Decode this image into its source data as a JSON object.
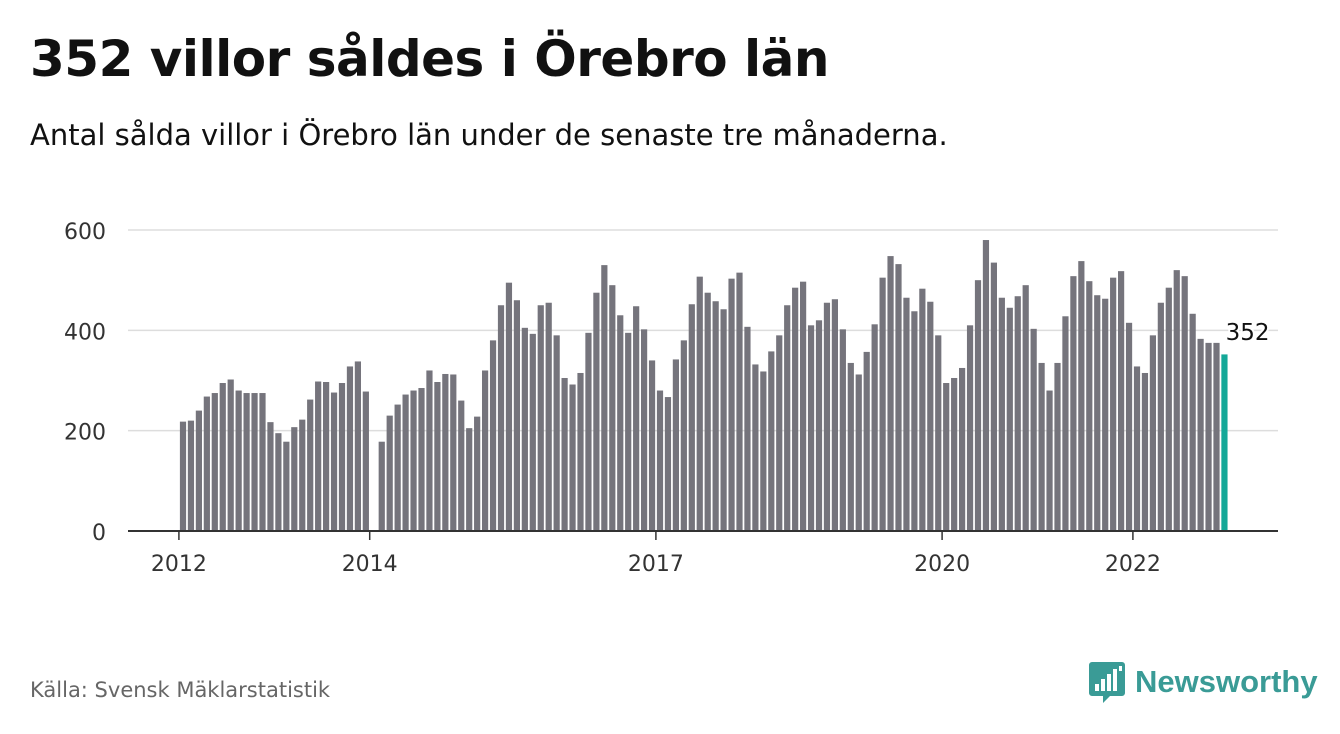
{
  "title": "352 villor såldes i Örebro län",
  "subtitle": "Antal sålda villor i Örebro län under de senaste tre månaderna.",
  "source": "Källa: Svensk Mäklarstatistik",
  "brand": {
    "name": "Newsworthy",
    "icon": "newsworthy-logo-icon",
    "color": "#3a9b96"
  },
  "colors": {
    "bar": "#75747c",
    "highlight": "#14a898",
    "grid": "#dddddd",
    "axis": "#333333"
  },
  "chart_data": {
    "type": "bar",
    "title": "352 villor såldes i Örebro län",
    "xlabel": "",
    "ylabel": "",
    "ylim": [
      0,
      600
    ],
    "yticks": [
      0,
      200,
      400,
      600
    ],
    "xticks": [
      {
        "label": "2012",
        "index": 0
      },
      {
        "label": "2014",
        "index": 24
      },
      {
        "label": "2017",
        "index": 60
      },
      {
        "label": "2020",
        "index": 96
      },
      {
        "label": "2022",
        "index": 120
      }
    ],
    "grid": true,
    "annotation": {
      "index": 131,
      "label": "352"
    },
    "highlight_index": 131,
    "values": [
      218,
      220,
      240,
      268,
      275,
      295,
      302,
      280,
      275,
      275,
      275,
      217,
      195,
      178,
      207,
      222,
      262,
      298,
      297,
      276,
      295,
      328,
      338,
      278,
      null,
      178,
      230,
      252,
      272,
      280,
      285,
      320,
      297,
      313,
      312,
      260,
      205,
      228,
      320,
      380,
      450,
      495,
      460,
      405,
      393,
      450,
      455,
      390,
      305,
      292,
      315,
      395,
      475,
      530,
      490,
      430,
      395,
      448,
      402,
      340,
      280,
      267,
      342,
      380,
      452,
      507,
      475,
      458,
      442,
      503,
      515,
      407,
      332,
      318,
      358,
      390,
      450,
      485,
      497,
      410,
      420,
      455,
      462,
      402,
      335,
      312,
      357,
      412,
      505,
      548,
      532,
      465,
      438,
      483,
      457,
      390,
      295,
      305,
      325,
      410,
      500,
      580,
      535,
      465,
      445,
      468,
      490,
      403,
      335,
      280,
      335,
      428,
      508,
      538,
      498,
      470,
      463,
      505,
      518,
      415,
      328,
      315,
      390,
      455,
      485,
      520,
      508,
      433,
      383,
      375,
      375,
      352
    ]
  }
}
